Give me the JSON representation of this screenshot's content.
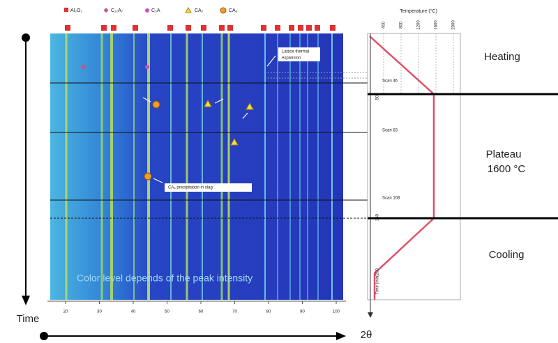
{
  "legend": {
    "items": [
      "Al₂O₃",
      "C₁₂A₇",
      "C₃A",
      "CA₂",
      "CA₆"
    ]
  },
  "heatmap": {
    "x_ticks": [
      "20",
      "30",
      "40",
      "50",
      "60",
      "70",
      "80",
      "90",
      "100"
    ],
    "annotations": {
      "lattice": "Lattice thermal",
      "lattice2": "expansion",
      "precip": "CA₆ precipitation in slag",
      "color_note": "Color level depends of the peak intensity"
    }
  },
  "temperature": {
    "title": "Temperature (°C)",
    "ticks": [
      "400",
      "800",
      "1200",
      "1600",
      "2000"
    ],
    "scans": [
      "Scan 46",
      "Scan 83",
      "Scan 108"
    ],
    "time_label": "Time (min)",
    "time_ticks": [
      "50",
      "150",
      "200"
    ]
  },
  "stages": {
    "heating": "Heating",
    "plateau": "Plateau",
    "plateau_temp": "1600 °C",
    "cooling": "Cooling"
  },
  "axes": {
    "time": "Time",
    "two_theta": "2θ"
  }
}
